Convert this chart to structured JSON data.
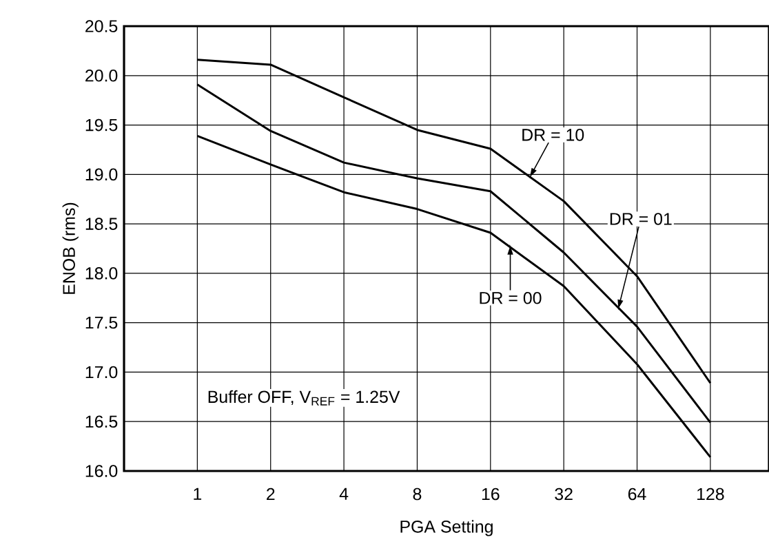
{
  "chart_data": {
    "type": "line",
    "xlabel": "PGA Setting",
    "ylabel": "ENOB (rms)",
    "categories": [
      "1",
      "2",
      "4",
      "8",
      "16",
      "32",
      "64",
      "128"
    ],
    "series": [
      {
        "name": "DR = 10",
        "color": "#000000",
        "values": [
          20.16,
          20.11,
          19.78,
          19.45,
          19.26,
          18.73,
          17.97,
          16.89
        ]
      },
      {
        "name": "DR = 01",
        "color": "#000000",
        "values": [
          19.91,
          19.44,
          19.12,
          18.96,
          18.83,
          18.21,
          17.46,
          16.49
        ]
      },
      {
        "name": "DR = 00",
        "color": "#000000",
        "values": [
          19.39,
          19.1,
          18.82,
          18.65,
          18.41,
          17.87,
          17.08,
          16.14
        ]
      }
    ],
    "ylim": [
      16.0,
      20.5
    ],
    "yticks": [
      {
        "value": 16.0,
        "label": "16.0"
      },
      {
        "value": 16.5,
        "label": "16.5"
      },
      {
        "value": 17.0,
        "label": "17.0"
      },
      {
        "value": 17.5,
        "label": "17.5"
      },
      {
        "value": 18.0,
        "label": "18.0"
      },
      {
        "value": 18.5,
        "label": "18.5"
      },
      {
        "value": 19.0,
        "label": "19.0"
      },
      {
        "value": 19.5,
        "label": "19.5"
      },
      {
        "value": 20.0,
        "label": "20.0"
      },
      {
        "value": 20.5,
        "label": "20.5"
      }
    ],
    "grid": true,
    "marker": "none",
    "line_style": "solid",
    "annotations": [
      "Buffer OFF, V$_{REF}$ = 1.25V"
    ]
  }
}
